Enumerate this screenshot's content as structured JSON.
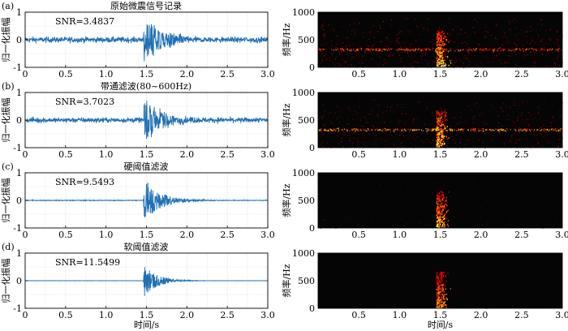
{
  "chart_data": [
    {
      "type": "line",
      "panel_label": "(a)",
      "title": "原始微震信号记录",
      "annotation": "SNR=3.4837",
      "ylabel": "归一化振幅",
      "xlim": [
        0,
        3.0
      ],
      "ylim": [
        -1,
        1
      ],
      "x_ticks": [
        "0",
        "0.5",
        "1.0",
        "1.5",
        "2.0",
        "2.5",
        "3.0"
      ],
      "y_ticks": [
        "1",
        "0",
        "-1"
      ],
      "noise_level": 0.1,
      "event": {
        "onset_s": 1.46,
        "peak_amplitude": 1.0,
        "decay": 0.22
      },
      "color": "#1f6fb5"
    },
    {
      "type": "line",
      "panel_label": "(b)",
      "title": "带通滤波(80~600Hz)",
      "annotation": "SNR=3.7023",
      "ylabel": "归一化振幅",
      "xlim": [
        0,
        3.0
      ],
      "ylim": [
        -1,
        1
      ],
      "x_ticks": [
        "0",
        "0.5",
        "1.0",
        "1.5",
        "2.0",
        "2.5",
        "3.0"
      ],
      "y_ticks": [
        "1",
        "0",
        "-1"
      ],
      "noise_level": 0.09,
      "event": {
        "onset_s": 1.46,
        "peak_amplitude": 0.9,
        "decay": 0.22
      },
      "color": "#1f6fb5"
    },
    {
      "type": "line",
      "panel_label": "(c)",
      "title": "硬阈值滤波",
      "annotation": "SNR=9.5493",
      "ylabel": "归一化振幅",
      "xlim": [
        0,
        3.0
      ],
      "ylim": [
        -1,
        1
      ],
      "x_ticks": [
        "0",
        "0.5",
        "1.0",
        "1.5",
        "2.0",
        "2.5",
        "3.0"
      ],
      "y_ticks": [
        "1",
        "0",
        "-1"
      ],
      "noise_level": 0.015,
      "event": {
        "onset_s": 1.46,
        "peak_amplitude": 0.85,
        "decay": 0.2
      },
      "color": "#1f6fb5"
    },
    {
      "type": "line",
      "panel_label": "(d)",
      "title": "软阈值滤波",
      "annotation": "SNR=11.5499",
      "ylabel": "归一化振幅",
      "xlabel": "时间/s",
      "xlim": [
        0,
        3.0
      ],
      "ylim": [
        -1,
        1
      ],
      "x_ticks": [
        "0",
        "0.5",
        "1.0",
        "1.5",
        "2.0",
        "2.5",
        "3.0"
      ],
      "y_ticks": [
        "1",
        "0",
        "-1"
      ],
      "noise_level": 0.004,
      "event": {
        "onset_s": 1.46,
        "peak_amplitude": 0.65,
        "decay": 0.16
      },
      "color": "#1f6fb5"
    },
    {
      "type": "heatmap",
      "ylabel": "频率/Hz",
      "xlim": [
        0,
        3.0
      ],
      "ylim": [
        0,
        1000
      ],
      "x_ticks": [
        "0.5",
        "1.0",
        "1.5",
        "2.0",
        "2.5",
        "3.0"
      ],
      "y_ticks": [
        "1000",
        "500",
        "0"
      ],
      "noise_band_hz": 330,
      "band_strength": 0.55,
      "scatter_strength": 0.45,
      "event_time_s": 1.5,
      "event_strength": 1.0
    },
    {
      "type": "heatmap",
      "ylabel": "频率/Hz",
      "xlim": [
        0,
        3.0
      ],
      "ylim": [
        0,
        1000
      ],
      "x_ticks": [
        "0.5",
        "1.0",
        "1.5",
        "2.0",
        "2.5",
        "3.0"
      ],
      "y_ticks": [
        "1000",
        "500",
        "0"
      ],
      "noise_band_hz": 330,
      "band_strength": 0.7,
      "scatter_strength": 0.35,
      "event_time_s": 1.5,
      "event_strength": 1.0
    },
    {
      "type": "heatmap",
      "ylabel": "频率/Hz",
      "xlim": [
        0,
        3.0
      ],
      "ylim": [
        0,
        1000
      ],
      "x_ticks": [
        "0.5",
        "1.0",
        "1.5",
        "2.0",
        "2.5",
        "3.0"
      ],
      "y_ticks": [
        "1000",
        "500",
        "0"
      ],
      "noise_band_hz": 330,
      "band_strength": 0.0,
      "scatter_strength": 0.18,
      "event_time_s": 1.5,
      "event_strength": 0.9
    },
    {
      "type": "heatmap",
      "ylabel": "频率/Hz",
      "xlabel": "时间/s",
      "xlim": [
        0,
        3.0
      ],
      "ylim": [
        0,
        1000
      ],
      "x_ticks": [
        "0.5",
        "1.0",
        "1.5",
        "2.0",
        "2.5",
        "3.0"
      ],
      "y_ticks": [
        "1000",
        "500",
        "0"
      ],
      "noise_band_hz": 330,
      "band_strength": 0.0,
      "scatter_strength": 0.12,
      "event_time_s": 1.5,
      "event_strength": 0.8
    }
  ]
}
